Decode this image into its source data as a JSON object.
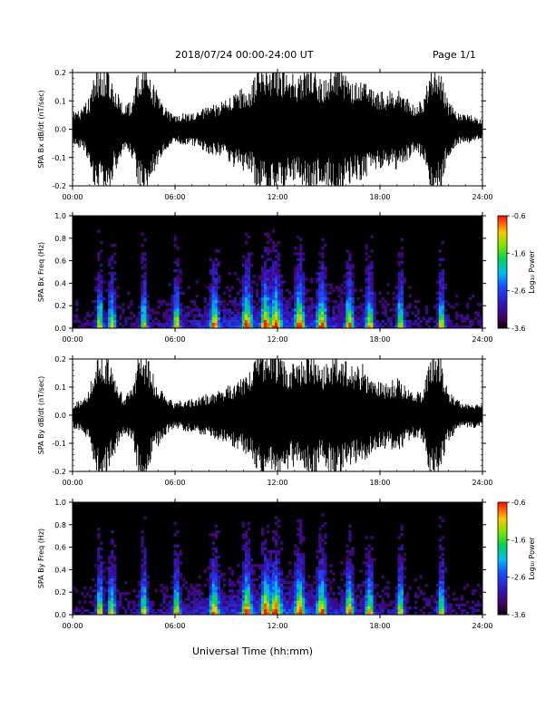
{
  "header": {
    "title": "2018/07/24  00:00-24:00 UT",
    "page": "Page 1/1"
  },
  "chart_data": [
    {
      "type": "line",
      "id": "bx-dbdt",
      "ylabel": "SPA Bx dB/dt (nT/sec)",
      "xlim": [
        0,
        24
      ],
      "ylim": [
        -0.2,
        0.2
      ],
      "yticks": [
        "0.2",
        "0.1",
        "0.0",
        "-0.1",
        "-0.2"
      ],
      "xticks": [
        "00:00",
        "06:00",
        "12:00",
        "18:00",
        "24:00"
      ],
      "envelope": {
        "hours": [
          0,
          0.5,
          1,
          1.3,
          1.6,
          2,
          2.5,
          3,
          3.5,
          3.9,
          4.3,
          4.7,
          5.2,
          5.7,
          6,
          6.5,
          7,
          7.5,
          8,
          8.5,
          9,
          9.5,
          10,
          10.5,
          10.8,
          11,
          11.5,
          12,
          12.5,
          13,
          13.5,
          14,
          14.5,
          15,
          15.5,
          16,
          16.5,
          17,
          17.5,
          18,
          18.5,
          19,
          19.5,
          20,
          20.5,
          21,
          21.2,
          21.5,
          21.8,
          22,
          22.5,
          23,
          23.5,
          24
        ],
        "amplitude": [
          0.05,
          0.06,
          0.1,
          0.2,
          0.2,
          0.2,
          0.13,
          0.07,
          0.09,
          0.2,
          0.2,
          0.15,
          0.09,
          0.05,
          0.04,
          0.05,
          0.05,
          0.06,
          0.08,
          0.08,
          0.09,
          0.12,
          0.13,
          0.14,
          0.2,
          0.2,
          0.2,
          0.2,
          0.18,
          0.17,
          0.18,
          0.2,
          0.16,
          0.18,
          0.2,
          0.18,
          0.16,
          0.17,
          0.13,
          0.12,
          0.12,
          0.13,
          0.1,
          0.08,
          0.09,
          0.2,
          0.2,
          0.2,
          0.13,
          0.09,
          0.05,
          0.05,
          0.04,
          0.03
        ]
      }
    },
    {
      "type": "heatmap",
      "id": "bx-spectrogram",
      "ylabel": "SPA Bx Freq (Hz)",
      "xlim": [
        0,
        24
      ],
      "ylim": [
        0,
        1.0
      ],
      "yticks": [
        "1.0",
        "0.8",
        "0.6",
        "0.4",
        "0.2",
        "0.0"
      ],
      "xticks": [
        "00:00",
        "06:00",
        "12:00",
        "18:00",
        "24:00"
      ],
      "colorbar": {
        "label": "Log₁₀ Power",
        "ticks": [
          "-0.6",
          "-1.6",
          "-2.6",
          "-3.6"
        ],
        "range": [
          -3.6,
          -0.6
        ]
      },
      "bursts": [
        1.6,
        2.3,
        4.2,
        6.1,
        8.3,
        10.2,
        11.3,
        11.9,
        13.3,
        14.6,
        16.2,
        17.4,
        19.2,
        21.6
      ]
    },
    {
      "type": "line",
      "id": "by-dbdt",
      "ylabel": "SPA By dB/dt (nT/sec)",
      "xlim": [
        0,
        24
      ],
      "ylim": [
        -0.2,
        0.2
      ],
      "yticks": [
        "0.2",
        "0.1",
        "0.0",
        "-0.1",
        "-0.2"
      ],
      "xticks": [
        "00:00",
        "06:00",
        "12:00",
        "18:00",
        "24:00"
      ],
      "envelope": {
        "hours": [
          0,
          0.5,
          1,
          1.3,
          1.6,
          2,
          2.5,
          3,
          3.5,
          3.9,
          4.3,
          4.7,
          5.2,
          5.7,
          6,
          6.5,
          7,
          7.5,
          8,
          8.5,
          9,
          9.5,
          10,
          10.5,
          10.8,
          11,
          11.5,
          12,
          12.5,
          13,
          13.5,
          14,
          14.5,
          15,
          15.5,
          16,
          16.5,
          17,
          17.5,
          18,
          18.5,
          19,
          19.5,
          20,
          20.5,
          21,
          21.2,
          21.5,
          21.8,
          22,
          22.5,
          23,
          23.5,
          24
        ],
        "amplitude": [
          0.04,
          0.05,
          0.08,
          0.18,
          0.2,
          0.2,
          0.12,
          0.06,
          0.08,
          0.2,
          0.2,
          0.13,
          0.08,
          0.05,
          0.04,
          0.05,
          0.05,
          0.06,
          0.07,
          0.08,
          0.09,
          0.1,
          0.12,
          0.14,
          0.2,
          0.2,
          0.2,
          0.2,
          0.17,
          0.16,
          0.17,
          0.2,
          0.15,
          0.17,
          0.2,
          0.17,
          0.15,
          0.16,
          0.12,
          0.11,
          0.1,
          0.12,
          0.09,
          0.07,
          0.08,
          0.2,
          0.2,
          0.2,
          0.12,
          0.08,
          0.05,
          0.04,
          0.04,
          0.03
        ]
      }
    },
    {
      "type": "heatmap",
      "id": "by-spectrogram",
      "ylabel": "SPA By Freq (Hz)",
      "xlim": [
        0,
        24
      ],
      "ylim": [
        0,
        1.0
      ],
      "yticks": [
        "1.0",
        "0.8",
        "0.6",
        "0.4",
        "0.2",
        "0.0"
      ],
      "xticks": [
        "00:00",
        "06:00",
        "12:00",
        "18:00",
        "24:00"
      ],
      "colorbar": {
        "label": "Log₁₀ Power",
        "ticks": [
          "-0.6",
          "-1.6",
          "-2.6",
          "-3.6"
        ],
        "range": [
          -3.6,
          -0.6
        ]
      },
      "bursts": [
        1.6,
        2.3,
        4.2,
        6.1,
        8.3,
        10.2,
        11.3,
        11.9,
        13.3,
        14.6,
        16.2,
        17.4,
        19.2,
        21.6
      ]
    }
  ],
  "xlabel": "Universal Time (hh:mm)"
}
